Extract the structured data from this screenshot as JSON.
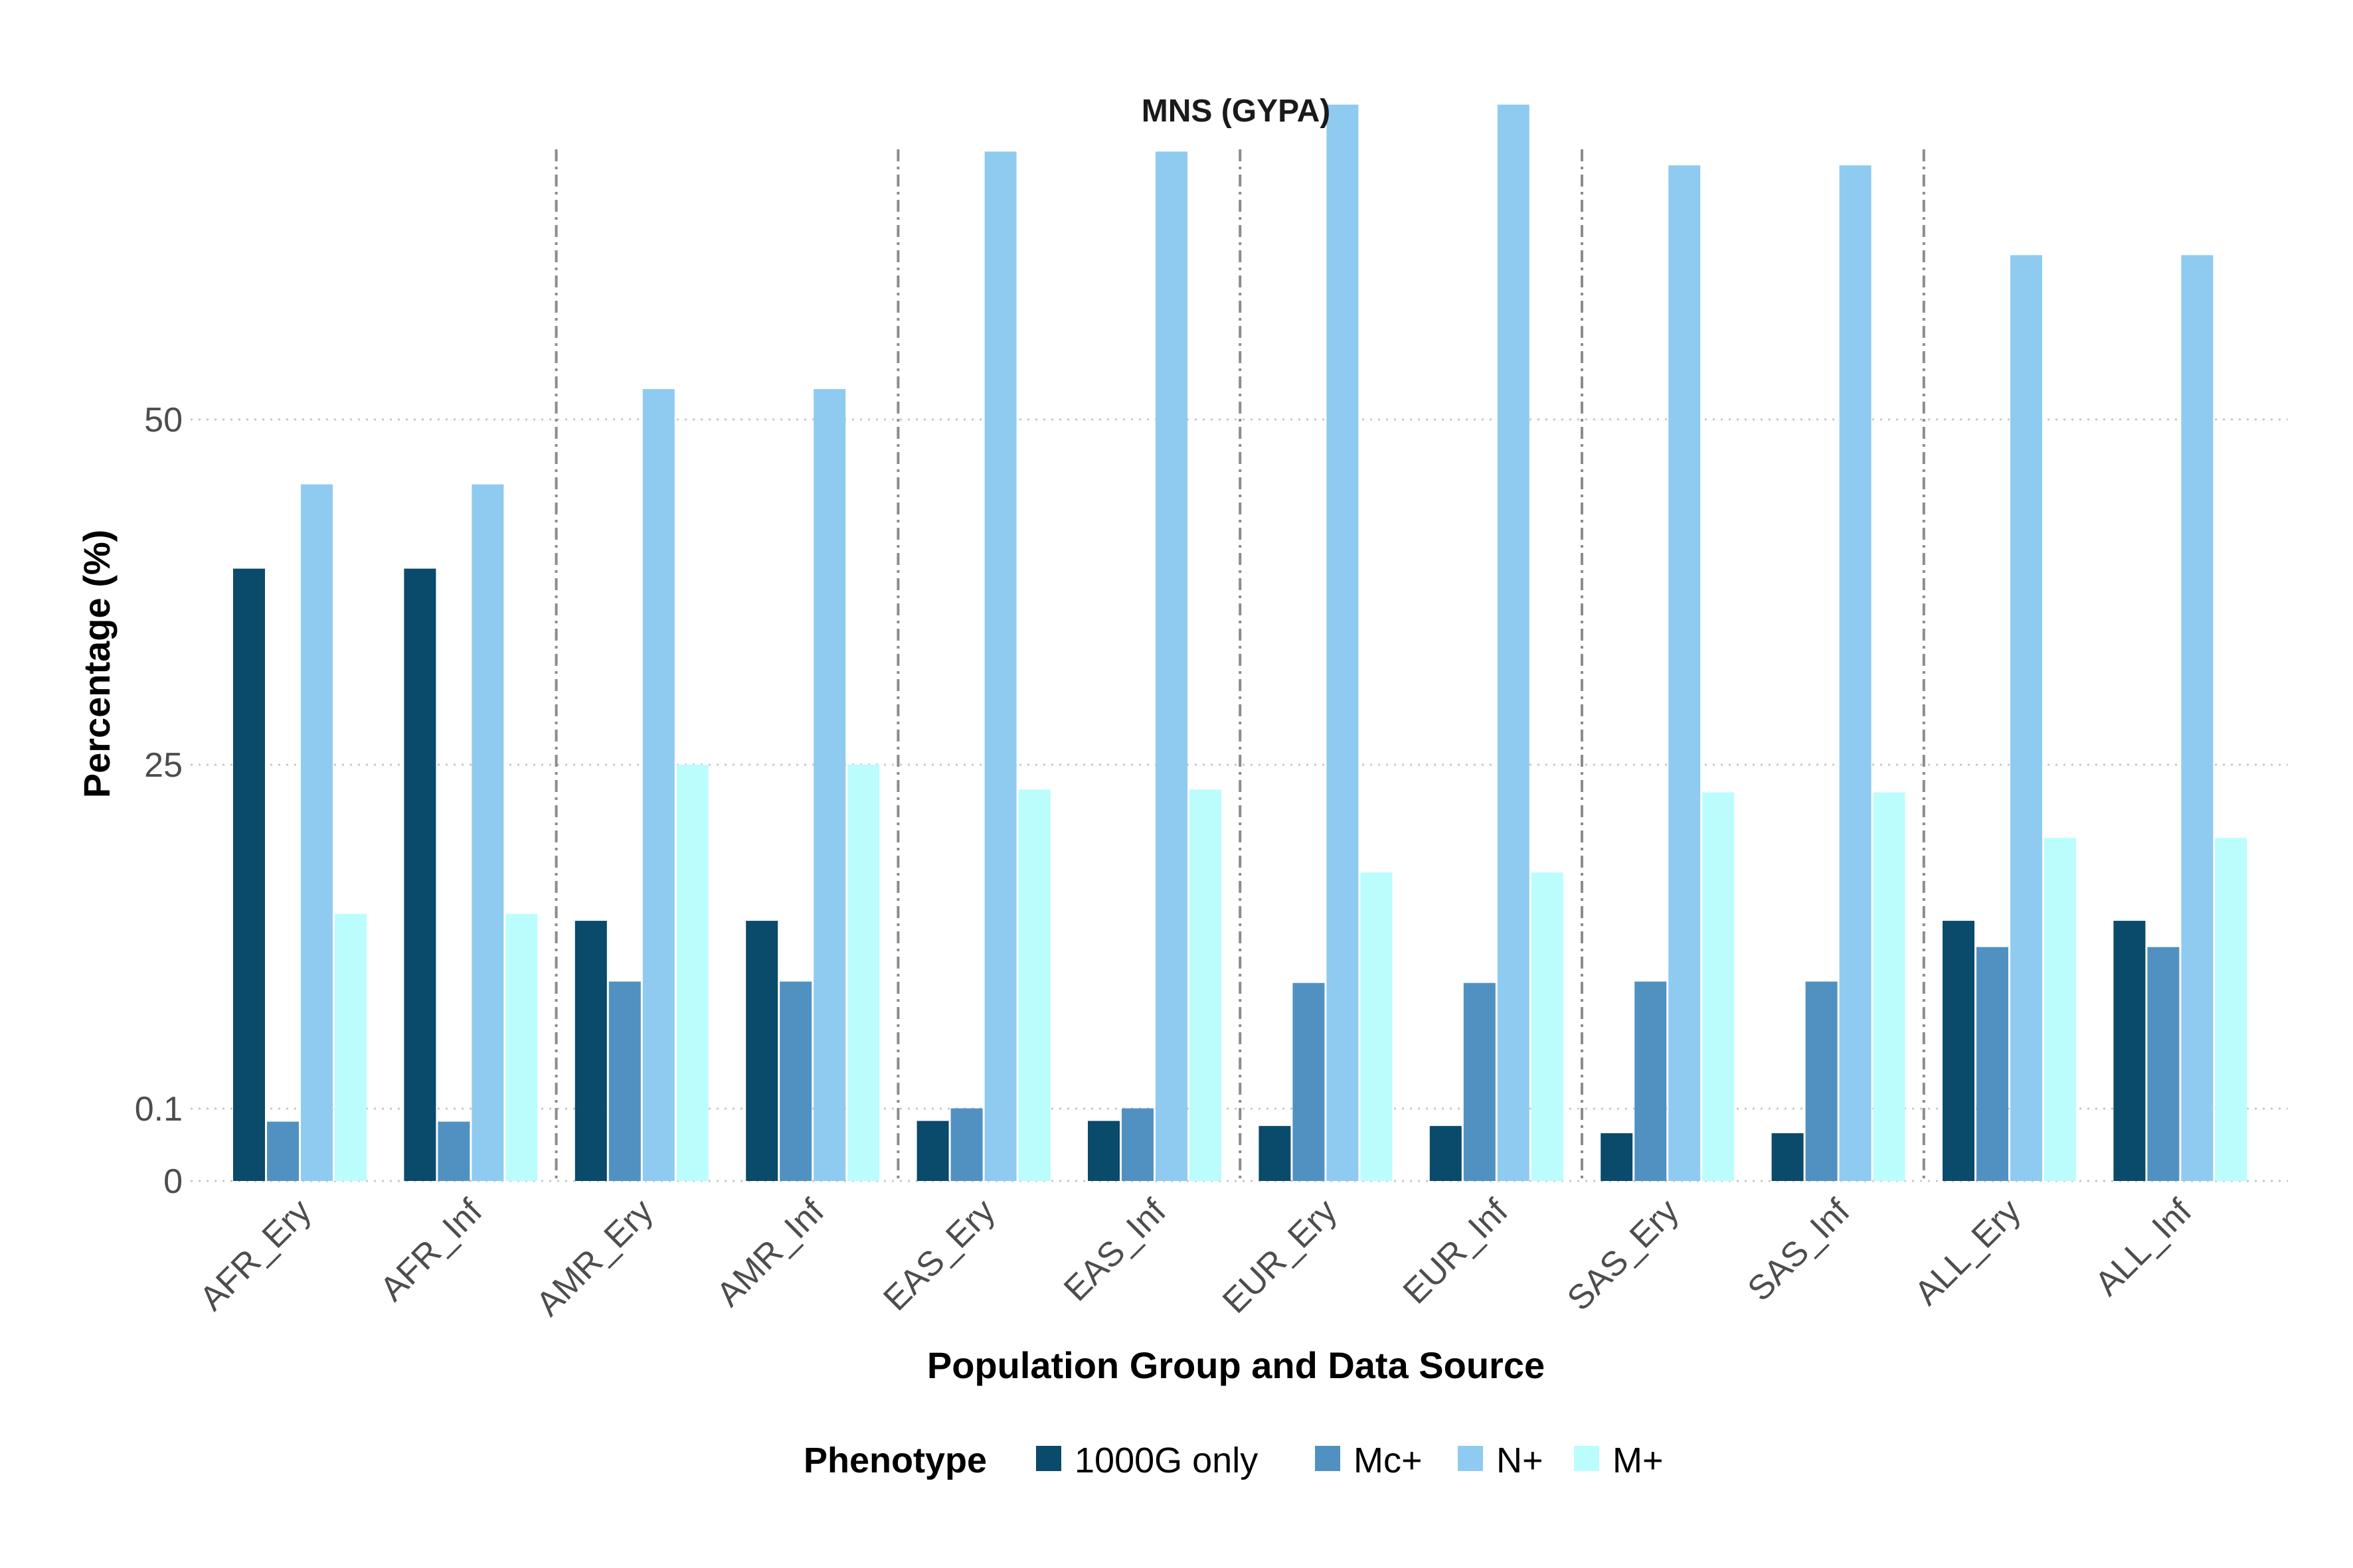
{
  "chart_data": {
    "type": "bar",
    "title": "MNS (GYPA)",
    "xlabel": "Population Group and Data Source",
    "ylabel": "Percentage (%)",
    "y_scale": "custom (non-linear; 0 and 0.1 expanded, linear above 0.1)",
    "y_ticks": [
      0,
      0.1,
      25,
      50
    ],
    "y_tick_labels": [
      "0",
      "0.1",
      "25",
      "50"
    ],
    "ylim": [
      0,
      75
    ],
    "grid": "horizontal dotted",
    "group_separators": "dashed vertical lines between population groups",
    "categories": [
      "AFR_Ery",
      "AFR_Inf",
      "AMR_Ery",
      "AMR_Inf",
      "EAS_Ery",
      "EAS_Inf",
      "EUR_Ery",
      "EUR_Inf",
      "SAS_Ery",
      "SAS_Inf",
      "ALL_Ery",
      "ALL_Inf"
    ],
    "legend": {
      "title": "Phenotype",
      "position": "bottom"
    },
    "series": [
      {
        "name": "1000G only",
        "color": "#0a4a6a",
        "values": [
          39.2,
          39.2,
          13.7,
          13.7,
          0.083,
          0.083,
          0.076,
          0.076,
          0.066,
          0.066,
          13.7,
          13.7
        ]
      },
      {
        "name": "Mc+",
        "color": "#5191c2",
        "values": [
          0.082,
          0.082,
          9.3,
          9.3,
          0.12,
          0.12,
          9.2,
          9.2,
          9.3,
          9.3,
          11.8,
          11.8
        ]
      },
      {
        "name": "N+",
        "color": "#8fcbf0",
        "values": [
          45.3,
          45.3,
          52.2,
          52.2,
          69.4,
          69.4,
          72.8,
          72.8,
          68.4,
          68.4,
          61.9,
          61.9
        ]
      },
      {
        "name": "M+",
        "color": "#bbfdfd",
        "values": [
          14.2,
          14.2,
          25.0,
          25.0,
          23.2,
          23.2,
          17.2,
          17.2,
          23.0,
          23.0,
          19.7,
          19.7
        ]
      }
    ]
  }
}
